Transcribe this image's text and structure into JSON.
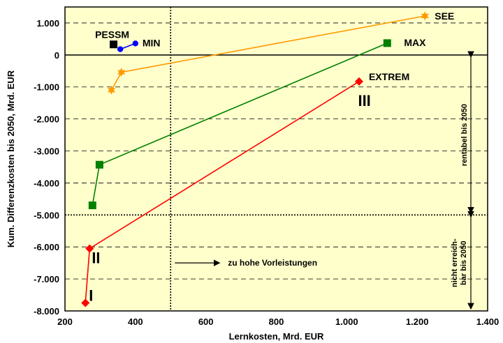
{
  "chart_data": {
    "type": "line",
    "xlabel": "Lernkosten, Mrd. EUR",
    "ylabel": "Kum. Differenzkosten bis 2050, Mrd. EUR",
    "xlim": [
      200,
      1400
    ],
    "ylim": [
      -8000,
      1500
    ],
    "x_ticks": [
      200,
      400,
      600,
      800,
      1000,
      1200,
      1400
    ],
    "x_tick_labels": [
      "200",
      "400",
      "600",
      "800",
      "1.000",
      "1.200",
      "1.400"
    ],
    "y_ticks": [
      1000,
      0,
      -1000,
      -2000,
      -3000,
      -4000,
      -5000,
      -6000,
      -7000,
      -8000
    ],
    "y_tick_labels": [
      "1.000",
      "0",
      "-1.000",
      "-2.000",
      "-3.000",
      "-4.000",
      "-5.000",
      "-6.000",
      "-7.000",
      "-8.000"
    ],
    "grid": "horizontal dashed",
    "plot_background": "#ffffcc",
    "series": [
      {
        "name": "EXTREM",
        "color": "#ff0000",
        "marker": "diamond",
        "x": [
          258,
          270,
          1035
        ],
        "y": [
          -7750,
          -6050,
          -830
        ]
      },
      {
        "name": "MAX",
        "color": "#008000",
        "marker": "square",
        "x": [
          278,
          298,
          1115
        ],
        "y": [
          -4700,
          -3430,
          370
        ]
      },
      {
        "name": "SEE",
        "color": "#ff9900",
        "marker": "star",
        "x": [
          332,
          360,
          1222
        ],
        "y": [
          -1100,
          -540,
          1220
        ]
      },
      {
        "name": "MIN",
        "color": "#0000ff",
        "marker": "circle",
        "x": [
          357,
          400
        ],
        "y": [
          180,
          360
        ]
      },
      {
        "name": "PESSM",
        "color": "#000000",
        "marker": "square",
        "x": [
          338
        ],
        "y": [
          330
        ]
      }
    ],
    "reference_lines": [
      {
        "orientation": "horizontal",
        "value": 0,
        "style": "solid"
      },
      {
        "orientation": "horizontal",
        "value": -5000,
        "style": "dotted"
      },
      {
        "orientation": "vertical",
        "value": 500,
        "style": "dotted"
      }
    ],
    "annotations": {
      "roman_1": "I",
      "roman_2": "II",
      "roman_3": "III",
      "vorleistungen": "zu hohe Vorleistungen",
      "rentabel": "rentabel bis 2050",
      "nicht_line1": "nicht erreich-",
      "nicht_line2": "bar bis 2050"
    }
  }
}
